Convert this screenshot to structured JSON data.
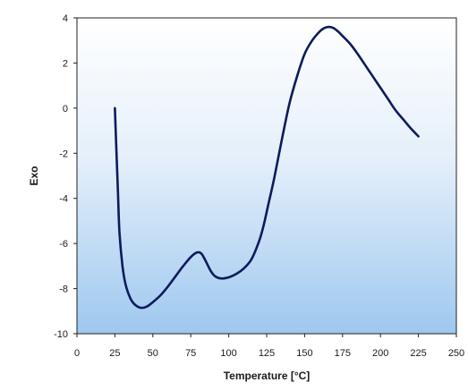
{
  "chart_data": {
    "type": "line",
    "title": "",
    "xlabel": "Temperature [°C]",
    "ylabel": "Exo",
    "xlim": [
      0,
      250
    ],
    "ylim": [
      -10,
      4
    ],
    "xticks": [
      0,
      25,
      50,
      75,
      100,
      125,
      150,
      175,
      200,
      225,
      250
    ],
    "yticks": [
      -10,
      -8,
      -6,
      -4,
      -2,
      0,
      2,
      4
    ],
    "xtick_labels": [
      "0",
      "25",
      "50",
      "75",
      "100",
      "125",
      "150",
      "175",
      "200",
      "225",
      "250"
    ],
    "ytick_labels": [
      "-10",
      "-8",
      "-6",
      "-4",
      "-2",
      "0",
      "2",
      "4"
    ],
    "grid": false,
    "legend": "none",
    "series": [
      {
        "x": [
          25,
          26,
          27,
          28,
          30,
          32,
          35,
          38,
          42,
          46,
          50,
          55,
          60,
          65,
          70,
          75,
          79,
          82,
          85,
          88,
          91,
          95,
          100,
          105,
          110,
          115,
          120,
          123,
          126,
          130,
          135,
          140,
          145,
          150,
          155,
          160,
          163,
          166,
          169,
          172,
          175,
          180,
          185,
          190,
          195,
          200,
          205,
          210,
          215,
          220,
          225
        ],
        "y": [
          0.0,
          -1.9,
          -3.7,
          -5.5,
          -7.0,
          -7.8,
          -8.4,
          -8.7,
          -8.85,
          -8.8,
          -8.6,
          -8.3,
          -7.9,
          -7.45,
          -7.0,
          -6.6,
          -6.4,
          -6.45,
          -6.8,
          -7.2,
          -7.45,
          -7.55,
          -7.5,
          -7.35,
          -7.1,
          -6.7,
          -5.9,
          -5.2,
          -4.3,
          -3.1,
          -1.4,
          0.2,
          1.4,
          2.4,
          3.0,
          3.4,
          3.55,
          3.6,
          3.55,
          3.4,
          3.2,
          2.85,
          2.4,
          1.9,
          1.4,
          0.9,
          0.4,
          -0.1,
          -0.5,
          -0.9,
          -1.25
        ],
        "color": "#0d1a5c"
      }
    ],
    "background_gradient": [
      "#ffffff",
      "#e4effa",
      "#9ec8ef"
    ]
  }
}
